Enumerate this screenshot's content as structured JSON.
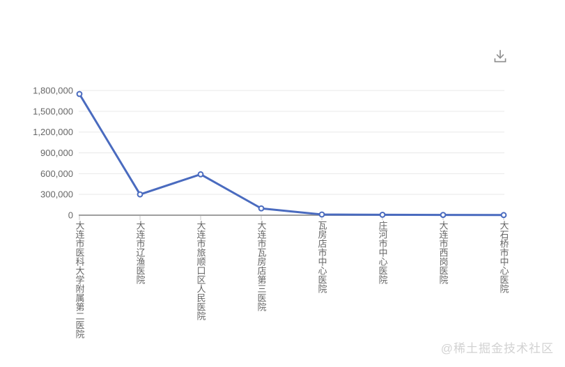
{
  "toolbar": {
    "download_icon": "download-icon"
  },
  "watermark": {
    "text": "@稀土掘金技术社区"
  },
  "colors": {
    "series": "#4a6bbf",
    "marker_fill": "#ffffff",
    "grid": "#e9e9e9",
    "axis": "#9e9e9e",
    "tick": "#c6c6c6",
    "label": "#666666",
    "icon": "#8c8c8c",
    "watermark": "#d2d2d2"
  },
  "chart_data": {
    "type": "line",
    "title": "",
    "xlabel": "",
    "ylabel": "",
    "categories": [
      "大连市医科大学附属第二医院",
      "大连市辽渔医院",
      "大连市旅顺口区人民医院",
      "大连市瓦房店第三医院",
      "瓦房店市中心医院",
      "庄河市中心医院",
      "大连市西岗医院",
      "大石桥市中心医院"
    ],
    "values": [
      1750000,
      300000,
      590000,
      98000,
      10000,
      6000,
      4000,
      2000
    ],
    "ylim": [
      0,
      1800000
    ],
    "ytick_interval": 300000,
    "ytick_labels": [
      "0",
      "300,000",
      "600,000",
      "900,000",
      "1,200,000",
      "1,500,000",
      "1,800,000"
    ],
    "grid": true,
    "legend": false,
    "marker": "hollow-circle",
    "x_label_orientation": "vertical"
  }
}
